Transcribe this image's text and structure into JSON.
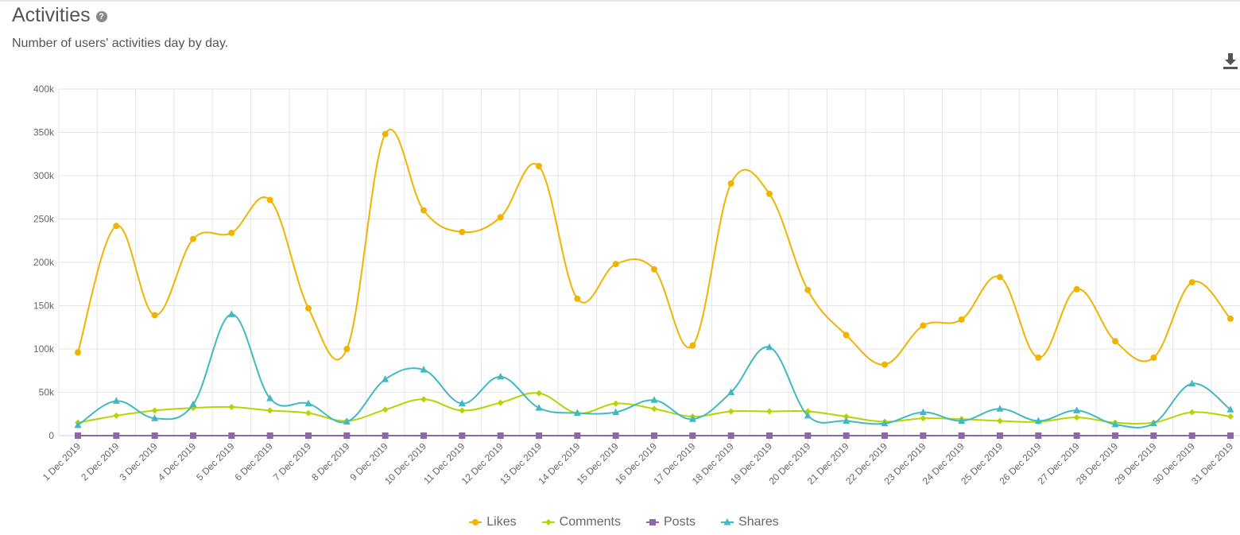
{
  "header": {
    "title": "Activities",
    "help_icon": "?",
    "subtitle": "Number of users' activities day by day."
  },
  "toolbar": {
    "download_icon": "download-icon"
  },
  "chart_data": {
    "type": "line",
    "title": "Activities",
    "subtitle": "Number of users' activities day by day.",
    "xlabel": "",
    "ylabel": "",
    "ylim": [
      0,
      400000
    ],
    "yticks": [
      "0",
      "50k",
      "100k",
      "150k",
      "200k",
      "250k",
      "300k",
      "350k",
      "400k"
    ],
    "grid": true,
    "legend_position": "bottom-center",
    "categories": [
      "1 Dec 2019",
      "2 Dec 2019",
      "3 Dec 2019",
      "4 Dec 2019",
      "5 Dec 2019",
      "6 Dec 2019",
      "7 Dec 2019",
      "8 Dec 2019",
      "9 Dec 2019",
      "10 Dec 2019",
      "11 Dec 2019",
      "12 Dec 2019",
      "13 Dec 2019",
      "14 Dec 2019",
      "15 Dec 2019",
      "16 Dec 2019",
      "17 Dec 2019",
      "18 Dec 2019",
      "19 Dec 2019",
      "20 Dec 2019",
      "21 Dec 2019",
      "22 Dec 2019",
      "23 Dec 2019",
      "24 Dec 2019",
      "25 Dec 2019",
      "26 Dec 2019",
      "27 Dec 2019",
      "28 Dec 2019",
      "29 Dec 2019",
      "30 Dec 2019",
      "31 Dec 2019"
    ],
    "series": [
      {
        "name": "Likes",
        "color": "#f0b400",
        "marker": "circle",
        "values": [
          96000,
          242000,
          139000,
          227000,
          234000,
          272000,
          147000,
          100000,
          348000,
          260000,
          235000,
          252000,
          311000,
          158000,
          198000,
          192000,
          104000,
          291000,
          279000,
          168000,
          116000,
          82000,
          127000,
          134000,
          183000,
          90000,
          169000,
          109000,
          90000,
          177000,
          135000
        ]
      },
      {
        "name": "Comments",
        "color": "#b7d400",
        "marker": "diamond",
        "values": [
          15000,
          23000,
          29000,
          32000,
          33000,
          29000,
          26000,
          17000,
          30000,
          42000,
          29000,
          38000,
          49000,
          26000,
          37000,
          31000,
          22000,
          28000,
          28000,
          28000,
          22000,
          16000,
          20000,
          19000,
          17000,
          16000,
          21000,
          15000,
          15000,
          27000,
          22000
        ]
      },
      {
        "name": "Posts",
        "color": "#8d67a6",
        "marker": "square",
        "values": [
          0,
          0,
          0,
          0,
          0,
          0,
          0,
          0,
          0,
          0,
          0,
          0,
          0,
          0,
          0,
          0,
          0,
          0,
          0,
          0,
          0,
          0,
          0,
          0,
          0,
          0,
          0,
          0,
          0,
          0,
          0
        ]
      },
      {
        "name": "Shares",
        "color": "#40b9c4",
        "marker": "triangle",
        "values": [
          12000,
          40000,
          20000,
          36000,
          140000,
          43000,
          37000,
          16000,
          65000,
          76000,
          37000,
          68000,
          32000,
          26000,
          27000,
          41000,
          19000,
          50000,
          102000,
          23000,
          17000,
          14000,
          27000,
          17000,
          31000,
          17000,
          29000,
          13000,
          14000,
          60000,
          30000
        ]
      }
    ]
  }
}
